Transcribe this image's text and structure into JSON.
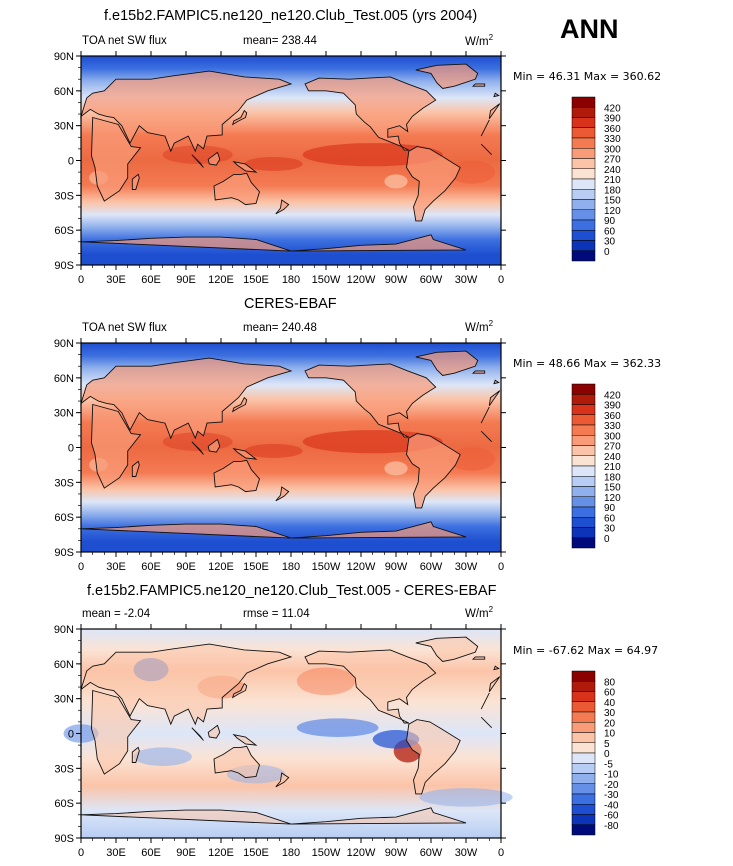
{
  "header": {
    "season": "ANN"
  },
  "panels": [
    {
      "title": "f.e15b2.FAMPIC5.ne120_ne120.Club_Test.005 (yrs 2004)",
      "left_label": "TOA net SW flux",
      "stat_label": "mean= 238.44",
      "units": "W/m",
      "units_sup": "2",
      "minmax": "Min =   46.31 Max =  360.62",
      "kind": "abs"
    },
    {
      "title": "CERES-EBAF",
      "left_label": "TOA net SW flux",
      "stat_label": "mean= 240.48",
      "units": "W/m",
      "units_sup": "2",
      "minmax": "Min =   48.66 Max =  362.33",
      "kind": "abs"
    },
    {
      "title": "f.e15b2.FAMPIC5.ne120_ne120.Club_Test.005 - CERES-EBAF",
      "left_label": "mean =   -2.04",
      "stat_label": "rmse =   11.04",
      "units": "W/m",
      "units_sup": "2",
      "minmax": "Min = -67.62 Max =   64.97",
      "kind": "diff"
    }
  ],
  "axes": {
    "y_ticks": [
      "90N",
      "60N",
      "30N",
      "0",
      "30S",
      "60S",
      "90S"
    ],
    "x_ticks": [
      "0",
      "30E",
      "60E",
      "90E",
      "120E",
      "150E",
      "180",
      "150W",
      "120W",
      "90W",
      "60W",
      "30W",
      "0"
    ]
  },
  "colorbars": {
    "abs": {
      "labels": [
        "420",
        "390",
        "360",
        "330",
        "300",
        "270",
        "240",
        "210",
        "180",
        "150",
        "120",
        "90",
        "60",
        "30",
        "0"
      ],
      "colors": [
        "#8b0000",
        "#b01a0a",
        "#d8321a",
        "#ec5a34",
        "#f47a52",
        "#f99b79",
        "#fbc4a8",
        "#fbe3d4",
        "#dce6f8",
        "#b7cdf3",
        "#8fb0ec",
        "#6690e6",
        "#3c6fe0",
        "#1f4fd1",
        "#0d33b8",
        "#000a7a"
      ]
    },
    "diff": {
      "labels": [
        "80",
        "60",
        "40",
        "30",
        "20",
        "10",
        "5",
        "0",
        "-5",
        "-10",
        "-20",
        "-30",
        "-40",
        "-60",
        "-80"
      ],
      "colors": [
        "#8b0000",
        "#b01a0a",
        "#d8321a",
        "#ec5a34",
        "#f47a52",
        "#f99b79",
        "#fbc4a8",
        "#fbe3d4",
        "#dce6f8",
        "#b7cdf3",
        "#8fb0ec",
        "#6690e6",
        "#3c6fe0",
        "#1f4fd1",
        "#0d33b8",
        "#000a7a"
      ]
    }
  },
  "chart_data": [
    {
      "type": "heatmap",
      "title": "f.e15b2.FAMPIC5.ne120_ne120.Club_Test.005 (yrs 2004)",
      "variable": "TOA net SW flux",
      "units": "W/m^2",
      "mean": 238.44,
      "min": 46.31,
      "max": 360.62,
      "x_range": [
        0,
        360
      ],
      "y_range": [
        -90,
        90
      ],
      "levels": [
        0,
        30,
        60,
        90,
        120,
        150,
        180,
        210,
        240,
        270,
        300,
        330,
        360,
        390,
        420
      ]
    },
    {
      "type": "heatmap",
      "title": "CERES-EBAF",
      "variable": "TOA net SW flux",
      "units": "W/m^2",
      "mean": 240.48,
      "min": 48.66,
      "max": 362.33,
      "x_range": [
        0,
        360
      ],
      "y_range": [
        -90,
        90
      ],
      "levels": [
        0,
        30,
        60,
        90,
        120,
        150,
        180,
        210,
        240,
        270,
        300,
        330,
        360,
        390,
        420
      ]
    },
    {
      "type": "heatmap",
      "title": "f.e15b2.FAMPIC5.ne120_ne120.Club_Test.005 - CERES-EBAF",
      "units": "W/m^2",
      "mean": -2.04,
      "rmse": 11.04,
      "min": -67.62,
      "max": 64.97,
      "x_range": [
        0,
        360
      ],
      "y_range": [
        -90,
        90
      ],
      "levels": [
        -80,
        -60,
        -40,
        -30,
        -20,
        -10,
        -5,
        0,
        5,
        10,
        20,
        30,
        40,
        60,
        80
      ]
    }
  ]
}
